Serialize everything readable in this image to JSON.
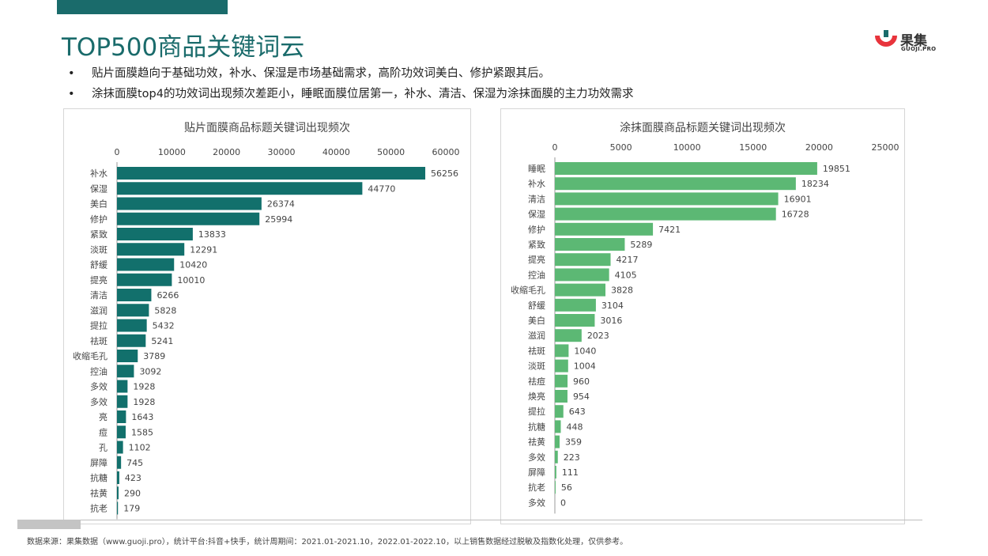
{
  "page": {
    "title": "TOP500商品关键词云",
    "bullets": [
      "贴片面膜趋向于基础功效，补水、保湿是市场基础需求，高阶功效词美白、修护紧跟其后。",
      "涂抹面膜top4的功效词出现频次差距小，睡眠面膜位居第一，补水、清洁、保湿为涂抹面膜的主力功效需求"
    ],
    "footer": "数据来源：果集数据（www.guoji.pro），统计平台:抖音+快手，统计周期间：2021.01-2021.10，2022.01-2022.10，以上销售数据经过脱敏及指数化处理，仅供参考。",
    "logo": {
      "cn": "果集",
      "en": "GUOJI.PRO"
    },
    "colors": {
      "brand": "#1a6b6b",
      "left_bar": "#12706c",
      "right_bar": "#5cb874",
      "logo_red": "#e8343c"
    }
  },
  "chart_data": [
    {
      "type": "bar",
      "orientation": "horizontal",
      "title": "贴片面膜商品标题关键词出现频次",
      "categories": [
        "补水",
        "保湿",
        "美白",
        "修护",
        "紧致",
        "淡斑",
        "舒缓",
        "提亮",
        "清洁",
        "滋润",
        "提拉",
        "祛斑",
        "收缩毛孔",
        "控油",
        "多效",
        "多效",
        "亮",
        "痘",
        "孔",
        "屏障",
        "抗糖",
        "祛黄",
        "抗老"
      ],
      "values": [
        56256,
        44770,
        26374,
        25994,
        13833,
        12291,
        10420,
        10010,
        6266,
        5828,
        5432,
        5241,
        3789,
        3092,
        1928,
        1928,
        1643,
        1585,
        1102,
        745,
        423,
        290,
        179
      ],
      "xlim": [
        0,
        60000
      ],
      "xticks": [
        0,
        10000,
        20000,
        30000,
        40000,
        50000,
        60000
      ],
      "data_labels": true,
      "grid": false,
      "color": "#12706c"
    },
    {
      "type": "bar",
      "orientation": "horizontal",
      "title": "涂抹面膜商品标题关键词出现频次",
      "categories": [
        "睡眠",
        "补水",
        "清洁",
        "保湿",
        "修护",
        "紧致",
        "提亮",
        "控油",
        "收缩毛孔",
        "舒缓",
        "美白",
        "滋润",
        "祛斑",
        "淡斑",
        "祛痘",
        "焕亮",
        "提拉",
        "抗糖",
        "祛黄",
        "多效",
        "屏障",
        "抗老",
        "多效"
      ],
      "values": [
        19851,
        18234,
        16901,
        16728,
        7421,
        5289,
        4217,
        4105,
        3828,
        3104,
        3016,
        2023,
        1040,
        1004,
        960,
        954,
        643,
        448,
        359,
        223,
        111,
        56,
        0
      ],
      "xlim": [
        0,
        25000
      ],
      "xticks": [
        0,
        5000,
        10000,
        15000,
        20000,
        25000
      ],
      "data_labels": true,
      "grid": false,
      "color": "#5cb874"
    }
  ]
}
